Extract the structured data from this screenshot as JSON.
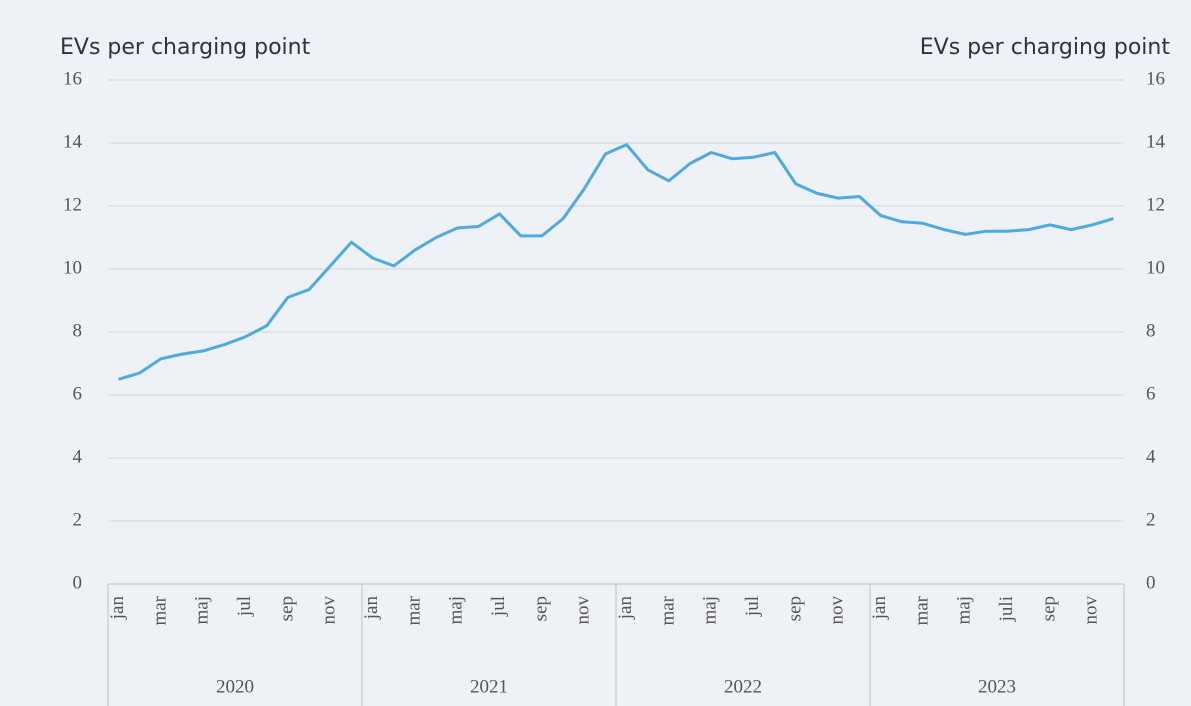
{
  "chart_data": {
    "type": "line",
    "y_label": "EVs per charging point",
    "y2_label": "EVs per charging point",
    "categories": [
      "jan",
      null,
      "mar",
      null,
      "maj",
      null,
      "jul",
      null,
      "sep",
      null,
      "nov",
      null,
      "jan",
      null,
      "mar",
      null,
      "maj",
      null,
      "jul",
      null,
      "sep",
      null,
      "nov",
      null,
      "jan",
      null,
      "mar",
      null,
      "maj",
      null,
      "jul",
      null,
      "sep",
      null,
      "nov",
      null,
      "jan",
      null,
      "mar",
      null,
      "maj",
      null,
      "juli",
      null,
      "sep",
      null,
      "nov",
      null
    ],
    "groups": [
      "2020",
      "2021",
      "2022",
      "2023"
    ],
    "series": [
      {
        "color": "#4eaadf",
        "values": [
          6.5,
          6.7,
          7.15,
          7.3,
          7.4,
          7.6,
          7.85,
          8.2,
          9.1,
          9.35,
          10.1,
          10.85,
          10.35,
          10.1,
          10.6,
          11.0,
          11.3,
          11.35,
          11.75,
          11.05,
          11.05,
          11.6,
          12.55,
          13.65,
          13.95,
          13.15,
          12.8,
          13.35,
          13.7,
          13.5,
          13.55,
          13.7,
          12.7,
          12.4,
          12.25,
          12.3,
          11.7,
          11.5,
          11.45,
          11.25,
          11.1,
          11.2,
          11.2,
          11.25,
          11.4,
          11.25,
          11.4,
          11.6
        ]
      }
    ],
    "ylim": [
      0,
      16
    ],
    "yticks": [
      0,
      2,
      4,
      6,
      8,
      10,
      12,
      14,
      16
    ],
    "y2lim": [
      0,
      16
    ],
    "y2ticks": [
      0,
      2,
      4,
      6,
      8,
      10,
      12,
      14,
      16
    ],
    "grid": true
  }
}
